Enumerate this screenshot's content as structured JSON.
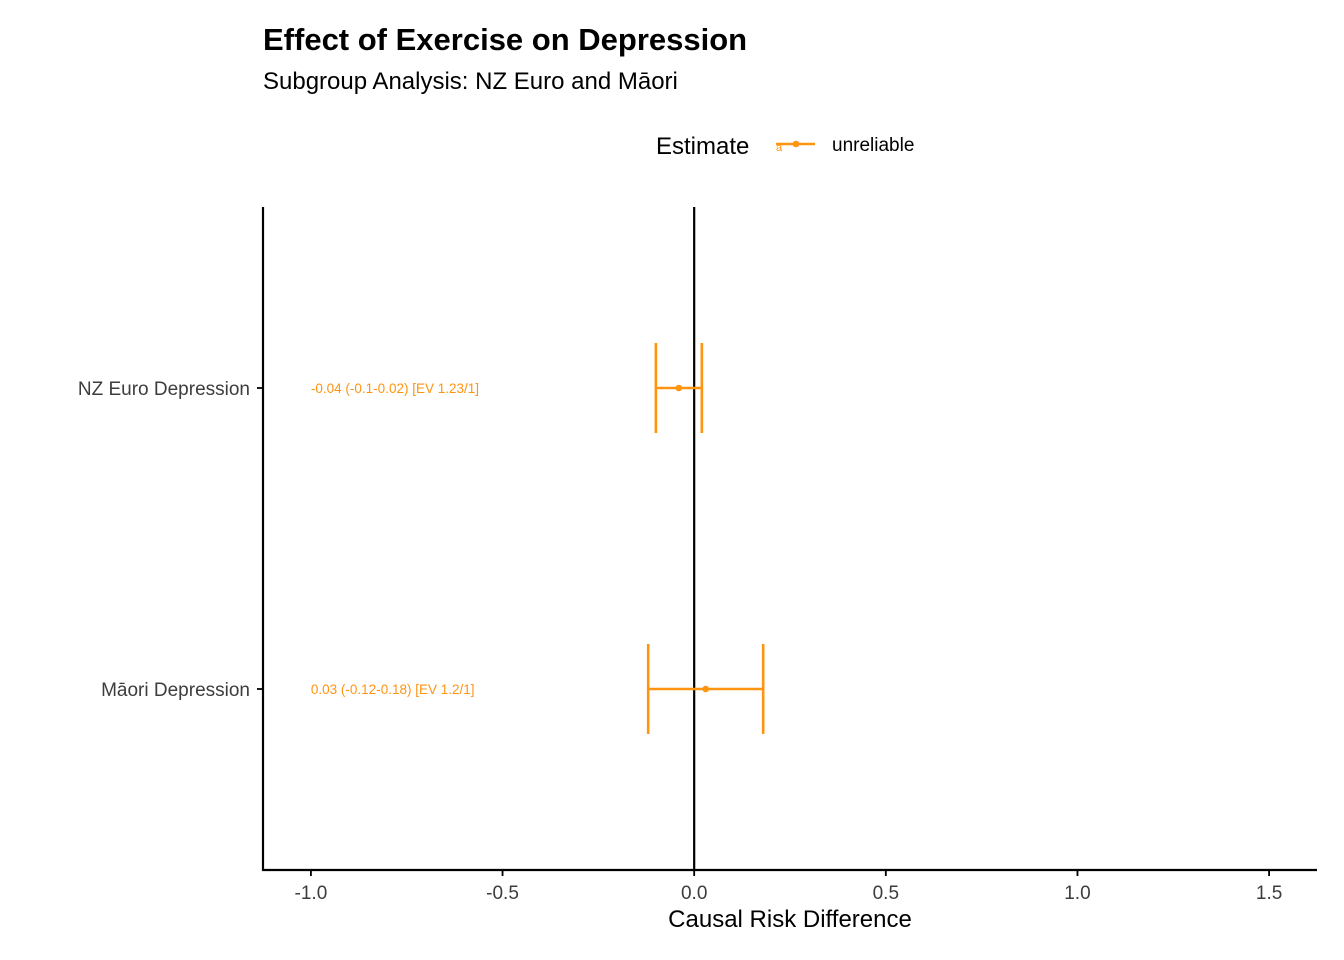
{
  "chart_data": {
    "type": "forest",
    "title": "Effect of Exercise on Depression",
    "subtitle": "Subgroup Analysis: NZ Euro and Māori",
    "xlabel": "Causal Risk Difference",
    "ylabel": "",
    "xlim": [
      -1.125,
      1.625
    ],
    "x_ticks": [
      -1.0,
      -0.5,
      0.0,
      0.5,
      1.0,
      1.5
    ],
    "x_tick_labels": [
      "-1.0",
      "-0.5",
      "0.0",
      "0.5",
      "1.0",
      "1.5"
    ],
    "reference_line": 0,
    "grid": false,
    "legend": {
      "title": "Estimate",
      "position": "top",
      "entries": [
        {
          "label": "unreliable",
          "color": "#ff9411",
          "key_glyph": "a"
        }
      ]
    },
    "rows": [
      {
        "label": "NZ Euro Depression",
        "estimate": -0.04,
        "lower": -0.1,
        "upper": 0.02,
        "annotation": "-0.04 (-0.1-0.02) [EV 1.23/1]",
        "annotation_x": -1.0,
        "category": "unreliable"
      },
      {
        "label": "Māori Depression",
        "estimate": 0.03,
        "lower": -0.12,
        "upper": 0.18,
        "annotation": "0.03 (-0.12-0.18) [EV 1.2/1]",
        "annotation_x": -1.0,
        "category": "unreliable"
      }
    ],
    "colors": {
      "unreliable": "#ff9411",
      "axis": "#000000",
      "tick_text": "#3d3d3d"
    }
  }
}
